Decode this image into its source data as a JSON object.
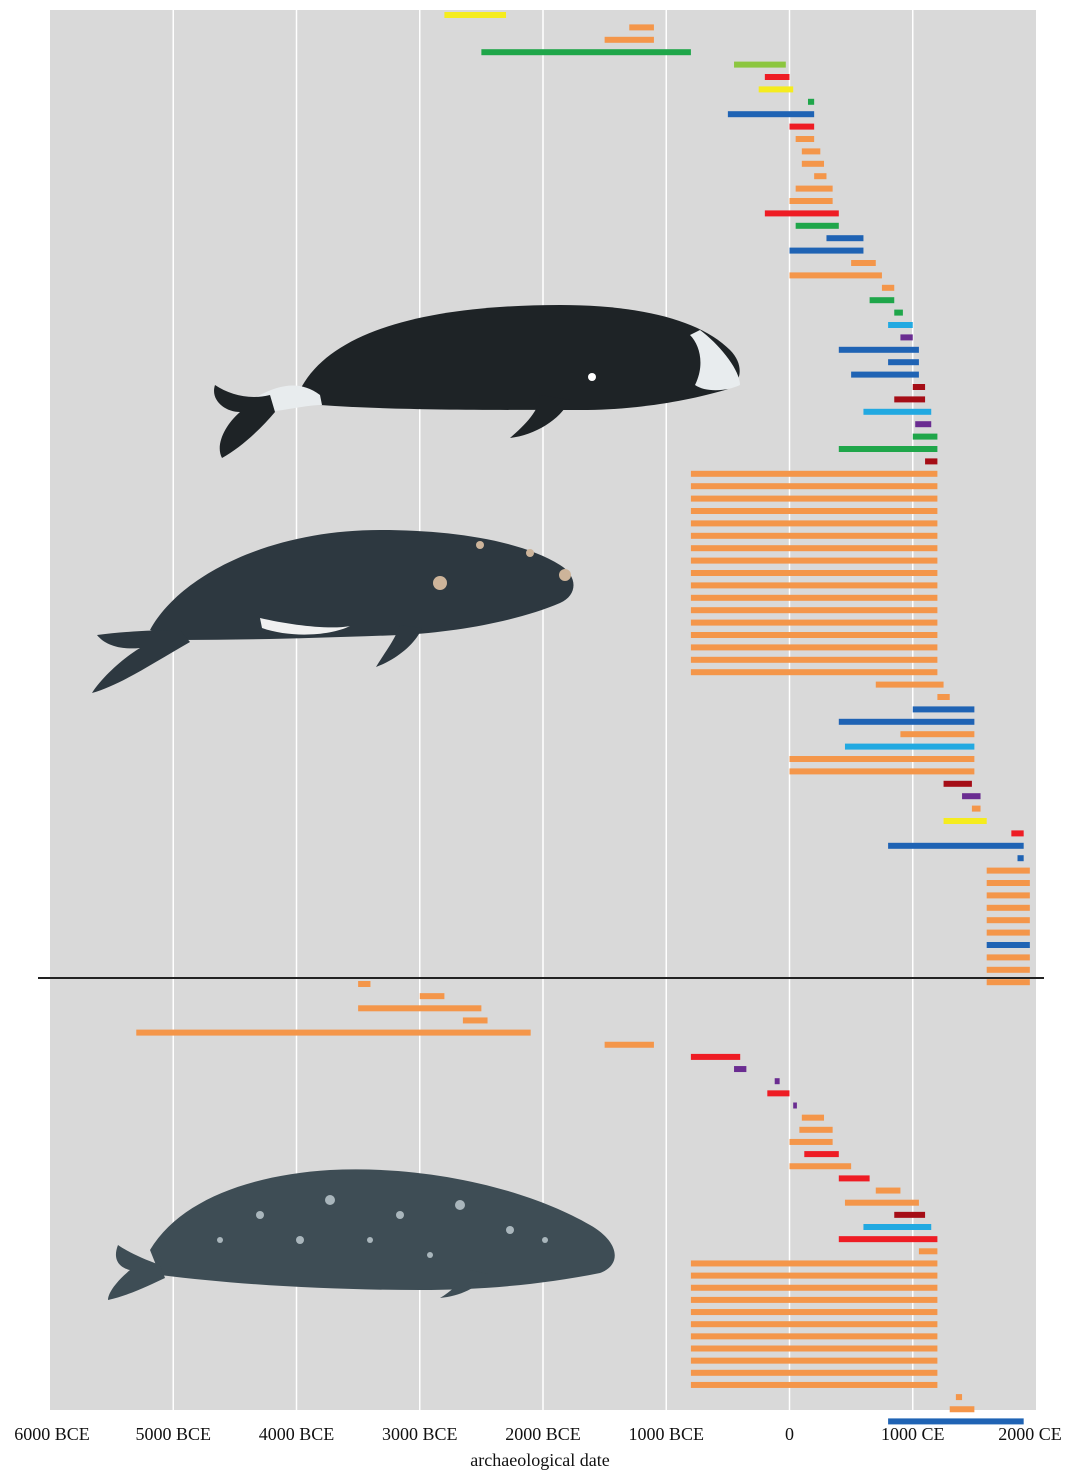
{
  "chart_data": {
    "type": "bar",
    "subtype": "horizontal-range",
    "xlabel": "archaeological date",
    "xlim": [
      -6000,
      2000
    ],
    "grid": true,
    "x_ticks": [
      {
        "value": -6000,
        "label": "6000 BCE"
      },
      {
        "value": -5000,
        "label": "5000 BCE"
      },
      {
        "value": -4000,
        "label": "4000 BCE"
      },
      {
        "value": -3000,
        "label": "3000 BCE"
      },
      {
        "value": -2000,
        "label": "2000 BCE"
      },
      {
        "value": -1000,
        "label": "1000 BCE"
      },
      {
        "value": 0,
        "label": "0"
      },
      {
        "value": 1000,
        "label": "1000 CE"
      },
      {
        "value": 2000,
        "label": "2000 CE"
      }
    ],
    "colors": {
      "orange": "#f4964a",
      "yellow": "#f5ec1e",
      "green": "#1fa64a",
      "lightgreen": "#8cc63f",
      "red": "#ee1c24",
      "darkred": "#a50d16",
      "blue": "#1f63b4",
      "lightblue": "#22a9e1",
      "purple": "#6a2c91",
      "panel": "#d9d9d9",
      "divider": "#222222"
    },
    "panels": [
      {
        "name": "top",
        "illustrations": [
          "bowhead-whale",
          "right-whale"
        ],
        "bars": [
          {
            "start": -2800,
            "end": -2300,
            "color": "yellow"
          },
          {
            "start": -1300,
            "end": -1100,
            "color": "orange"
          },
          {
            "start": -1500,
            "end": -1100,
            "color": "orange"
          },
          {
            "start": -2500,
            "end": -800,
            "color": "green"
          },
          {
            "start": -450,
            "end": -30,
            "color": "lightgreen"
          },
          {
            "start": -200,
            "end": 0,
            "color": "red"
          },
          {
            "start": -250,
            "end": 30,
            "color": "yellow"
          },
          {
            "start": 150,
            "end": 200,
            "color": "green"
          },
          {
            "start": -500,
            "end": 200,
            "color": "blue"
          },
          {
            "start": 0,
            "end": 200,
            "color": "red"
          },
          {
            "start": 50,
            "end": 200,
            "color": "orange"
          },
          {
            "start": 100,
            "end": 250,
            "color": "orange"
          },
          {
            "start": 100,
            "end": 280,
            "color": "orange"
          },
          {
            "start": 200,
            "end": 300,
            "color": "orange"
          },
          {
            "start": 50,
            "end": 350,
            "color": "orange"
          },
          {
            "start": 0,
            "end": 350,
            "color": "orange"
          },
          {
            "start": -200,
            "end": 400,
            "color": "red"
          },
          {
            "start": 50,
            "end": 400,
            "color": "green"
          },
          {
            "start": 300,
            "end": 600,
            "color": "blue"
          },
          {
            "start": 0,
            "end": 600,
            "color": "blue"
          },
          {
            "start": 500,
            "end": 700,
            "color": "orange"
          },
          {
            "start": 0,
            "end": 750,
            "color": "orange"
          },
          {
            "start": 750,
            "end": 850,
            "color": "orange"
          },
          {
            "start": 650,
            "end": 850,
            "color": "green"
          },
          {
            "start": 850,
            "end": 920,
            "color": "green"
          },
          {
            "start": 800,
            "end": 1000,
            "color": "lightblue"
          },
          {
            "start": 900,
            "end": 1000,
            "color": "purple"
          },
          {
            "start": 400,
            "end": 1050,
            "color": "blue"
          },
          {
            "start": 800,
            "end": 1050,
            "color": "blue"
          },
          {
            "start": 500,
            "end": 1050,
            "color": "blue"
          },
          {
            "start": 1000,
            "end": 1100,
            "color": "darkred"
          },
          {
            "start": 850,
            "end": 1100,
            "color": "darkred"
          },
          {
            "start": 600,
            "end": 1150,
            "color": "lightblue"
          },
          {
            "start": 1020,
            "end": 1150,
            "color": "purple"
          },
          {
            "start": 1000,
            "end": 1200,
            "color": "green"
          },
          {
            "start": 400,
            "end": 1200,
            "color": "green"
          },
          {
            "start": 1100,
            "end": 1200,
            "color": "darkred"
          },
          {
            "start": -800,
            "end": 1200,
            "color": "orange",
            "repeat": 17
          },
          {
            "start": 700,
            "end": 1250,
            "color": "orange"
          },
          {
            "start": 1200,
            "end": 1300,
            "color": "orange"
          },
          {
            "start": 1000,
            "end": 1500,
            "color": "blue"
          },
          {
            "start": 400,
            "end": 1500,
            "color": "blue"
          },
          {
            "start": 900,
            "end": 1500,
            "color": "orange"
          },
          {
            "start": 450,
            "end": 1500,
            "color": "lightblue"
          },
          {
            "start": 0,
            "end": 1500,
            "color": "orange"
          },
          {
            "start": 0,
            "end": 1500,
            "color": "orange"
          },
          {
            "start": 1250,
            "end": 1480,
            "color": "darkred"
          },
          {
            "start": 1400,
            "end": 1550,
            "color": "purple"
          },
          {
            "start": 1480,
            "end": 1550,
            "color": "orange"
          },
          {
            "start": 1250,
            "end": 1600,
            "color": "yellow"
          },
          {
            "start": 1800,
            "end": 1900,
            "color": "red"
          },
          {
            "start": 800,
            "end": 1900,
            "color": "blue"
          },
          {
            "start": 1850,
            "end": 1900,
            "color": "blue"
          },
          {
            "start": 1600,
            "end": 1950,
            "color": "orange",
            "repeat": 6
          },
          {
            "start": 1600,
            "end": 1950,
            "color": "blue"
          },
          {
            "start": 1600,
            "end": 1950,
            "color": "orange",
            "repeat": 3
          }
        ]
      },
      {
        "name": "bottom",
        "illustrations": [
          "gray-whale"
        ],
        "bars": [
          {
            "start": -3500,
            "end": -3400,
            "color": "orange"
          },
          {
            "start": -3000,
            "end": -2800,
            "color": "orange"
          },
          {
            "start": -3500,
            "end": -2500,
            "color": "orange"
          },
          {
            "start": -2650,
            "end": -2450,
            "color": "orange"
          },
          {
            "start": -5300,
            "end": -2100,
            "color": "orange"
          },
          {
            "start": -1500,
            "end": -1100,
            "color": "orange"
          },
          {
            "start": -800,
            "end": -400,
            "color": "red"
          },
          {
            "start": -450,
            "end": -350,
            "color": "purple"
          },
          {
            "start": -120,
            "end": -80,
            "color": "purple"
          },
          {
            "start": -180,
            "end": 0,
            "color": "red"
          },
          {
            "start": 30,
            "end": 60,
            "color": "purple"
          },
          {
            "start": 100,
            "end": 280,
            "color": "orange"
          },
          {
            "start": 80,
            "end": 350,
            "color": "orange"
          },
          {
            "start": 0,
            "end": 350,
            "color": "orange"
          },
          {
            "start": 120,
            "end": 400,
            "color": "red"
          },
          {
            "start": 0,
            "end": 500,
            "color": "orange"
          },
          {
            "start": 400,
            "end": 650,
            "color": "red"
          },
          {
            "start": 700,
            "end": 900,
            "color": "orange"
          },
          {
            "start": 450,
            "end": 1050,
            "color": "orange"
          },
          {
            "start": 850,
            "end": 1100,
            "color": "darkred"
          },
          {
            "start": 600,
            "end": 1150,
            "color": "lightblue"
          },
          {
            "start": 400,
            "end": 1200,
            "color": "red"
          },
          {
            "start": 1050,
            "end": 1200,
            "color": "orange"
          },
          {
            "start": -800,
            "end": 1200,
            "color": "orange",
            "repeat": 11
          },
          {
            "start": 1350,
            "end": 1400,
            "color": "orange"
          },
          {
            "start": 1300,
            "end": 1500,
            "color": "orange"
          },
          {
            "start": 800,
            "end": 1900,
            "color": "blue"
          }
        ]
      }
    ]
  }
}
